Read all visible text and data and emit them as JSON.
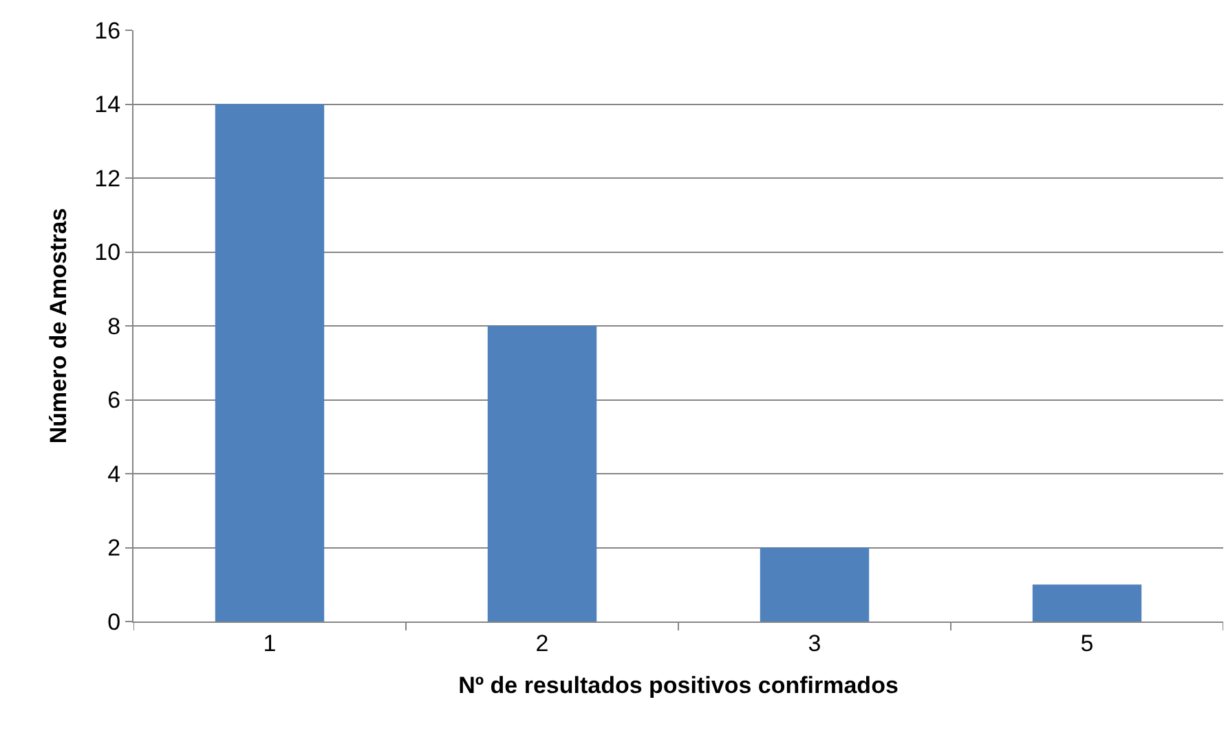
{
  "chart_data": {
    "type": "bar",
    "xlabel": "Nº de resultados positivos confirmados",
    "ylabel": "Número de Amostras",
    "categories": [
      "1",
      "2",
      "3",
      "5"
    ],
    "values": [
      14,
      8,
      2,
      1
    ],
    "color": "#4f81bd",
    "ylim": [
      0,
      16
    ],
    "yticks": [
      0,
      2,
      4,
      6,
      8,
      10,
      12,
      14,
      16
    ],
    "grid": "y",
    "legend": false
  }
}
